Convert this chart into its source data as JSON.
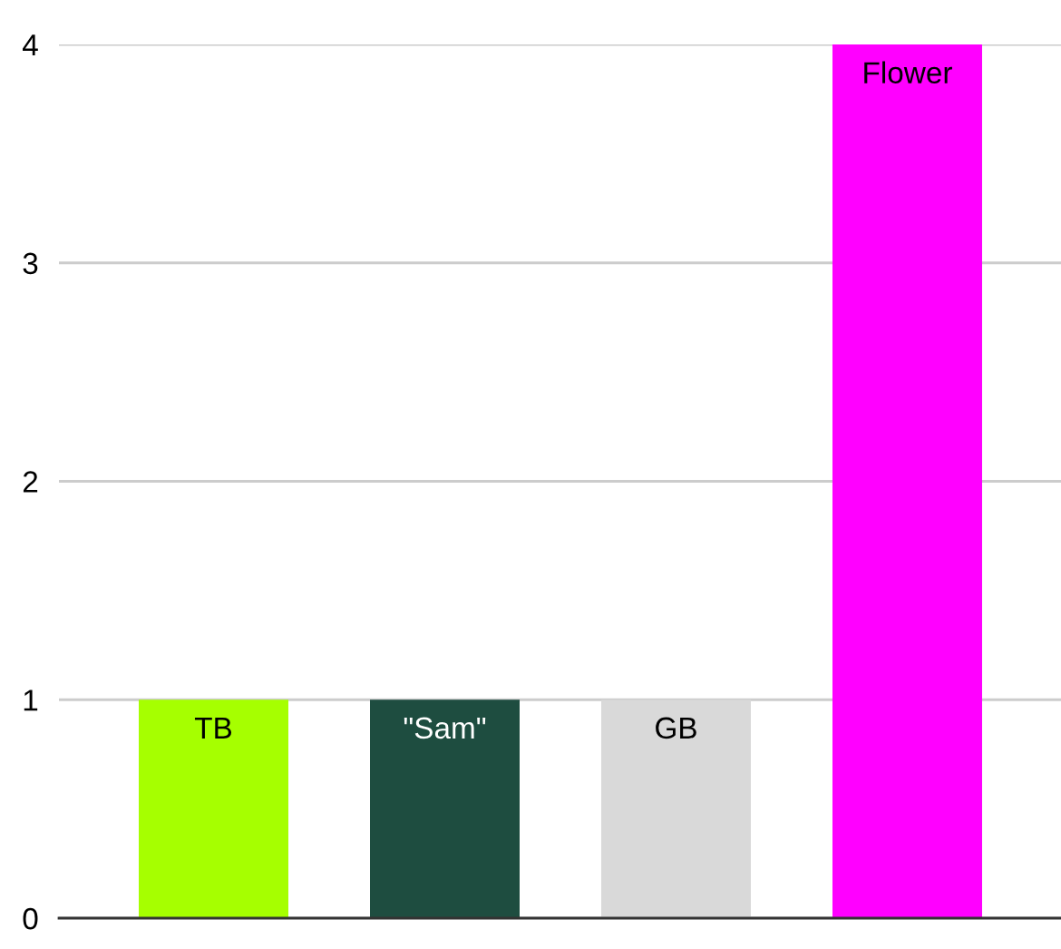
{
  "chart_data": {
    "type": "bar",
    "categories": [
      "TB",
      "\"Sam\"",
      "GB",
      "Flower"
    ],
    "values": [
      1,
      1,
      1,
      4
    ],
    "colors": [
      "#a6ff00",
      "#1e4d40",
      "#d9d9d9",
      "#ff00ff"
    ],
    "ylim": [
      0,
      4
    ],
    "yticks": [
      0,
      1,
      2,
      3,
      4
    ],
    "grid": "y",
    "tick_labels": "y"
  }
}
